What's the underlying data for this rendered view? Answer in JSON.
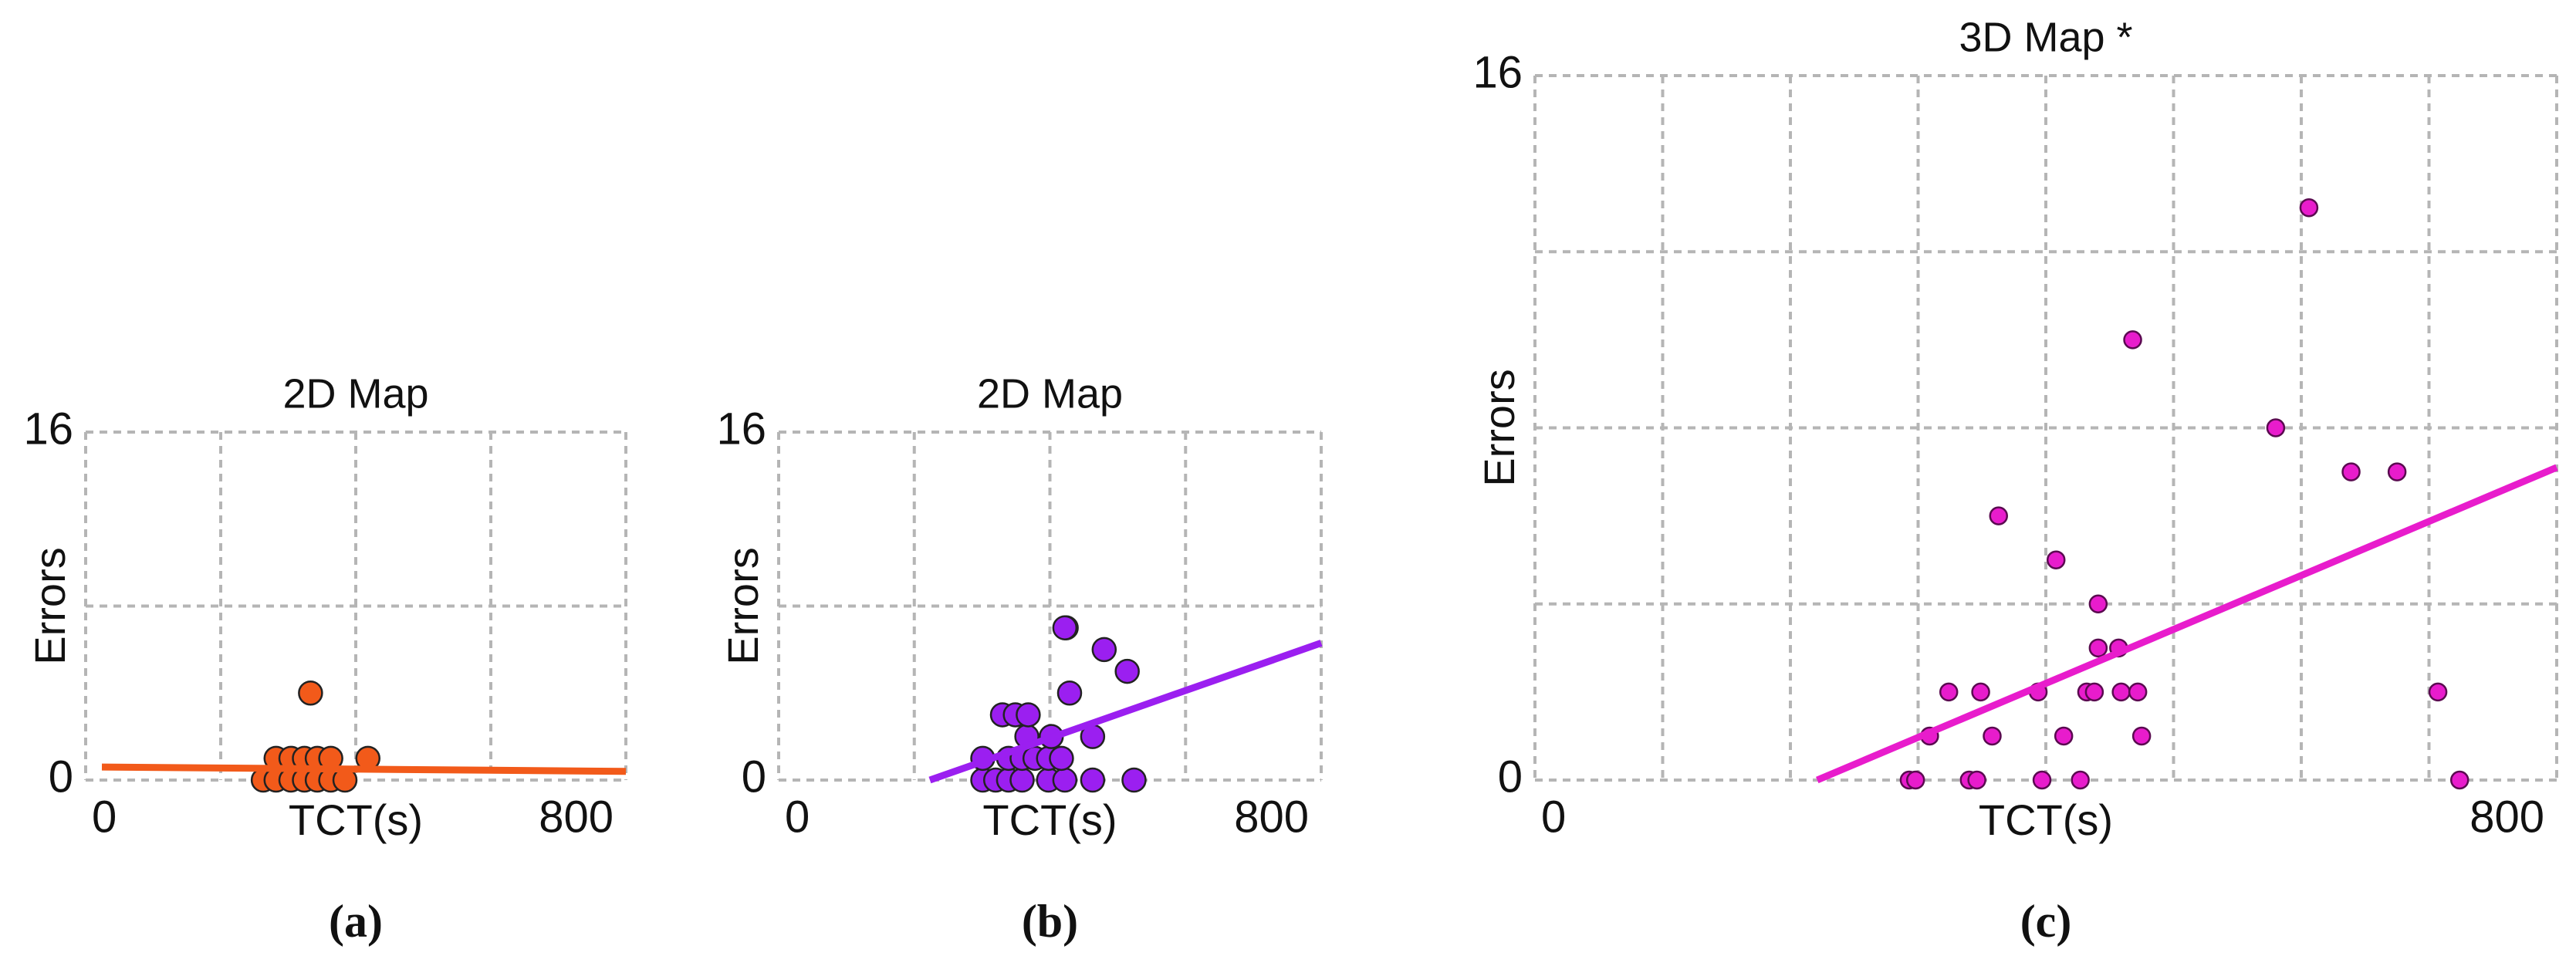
{
  "chart_data": [
    {
      "type": "scatter",
      "title": "2D Map",
      "xlabel": "TCT(s)",
      "ylabel": "Errors",
      "caption": "(a)",
      "color": "#f25a1a",
      "marker_edge": "#222222",
      "xlim": [
        0,
        800
      ],
      "ylim": [
        0,
        16
      ],
      "xticks": [
        0,
        800
      ],
      "yticks": [
        0,
        16
      ],
      "grid": true,
      "x": [
        263,
        282,
        304,
        324,
        343,
        363,
        384,
        282,
        304,
        324,
        343,
        363,
        418,
        333
      ],
      "y": [
        0,
        0,
        0,
        0,
        0,
        0,
        0,
        1,
        1,
        1,
        1,
        1,
        1,
        4
      ],
      "fit": {
        "x": [
          24,
          800
        ],
        "y": [
          0.6,
          0.4
        ]
      }
    },
    {
      "type": "scatter",
      "title": "2D Map",
      "xlabel": "TCT(s)",
      "ylabel": "Errors",
      "caption": "(b)",
      "color": "#9b1ff0",
      "marker_edge": "#222222",
      "xlim": [
        0,
        800
      ],
      "ylim": [
        0,
        16
      ],
      "xticks": [
        0,
        800
      ],
      "yticks": [
        0,
        16
      ],
      "grid": true,
      "x": [
        301,
        320,
        339,
        359,
        398,
        422,
        463,
        524,
        301,
        339,
        359,
        378,
        398,
        417,
        366,
        402,
        463,
        330,
        349,
        368,
        429,
        514,
        480,
        424,
        422
      ],
      "y": [
        0,
        0,
        0,
        0,
        0,
        0,
        0,
        0,
        1,
        1,
        1,
        1,
        1,
        1,
        2,
        2,
        2,
        3,
        3,
        3,
        4,
        5,
        6,
        7,
        7
      ],
      "fit": {
        "x": [
          223,
          800
        ],
        "y": [
          0,
          6.3
        ]
      }
    },
    {
      "type": "scatter",
      "title": "3D Map *",
      "xlabel": "TCT(s)",
      "ylabel": "Errors",
      "caption": "(c)",
      "color": "#e81ccc",
      "marker_edge": "#5a0a50",
      "xlim": [
        0,
        800
      ],
      "ylim": [
        0,
        16
      ],
      "xticks": [
        0,
        800
      ],
      "yticks": [
        0,
        16
      ],
      "grid": true,
      "x": [
        293,
        298,
        340,
        346,
        397,
        427,
        724,
        309,
        358,
        414,
        475,
        324,
        349,
        394,
        432,
        438,
        459,
        472,
        707,
        441,
        457,
        441,
        408,
        363,
        468,
        580,
        639,
        675,
        606
      ],
      "y": [
        0,
        0,
        0,
        0,
        0,
        0,
        0,
        1,
        1,
        1,
        1,
        2,
        2,
        2,
        2,
        2,
        2,
        2,
        2,
        3,
        3,
        4,
        5,
        6,
        10,
        8,
        7,
        7,
        13
      ],
      "fit": {
        "x": [
          221,
          800
        ],
        "y": [
          0,
          7.1
        ]
      }
    }
  ]
}
